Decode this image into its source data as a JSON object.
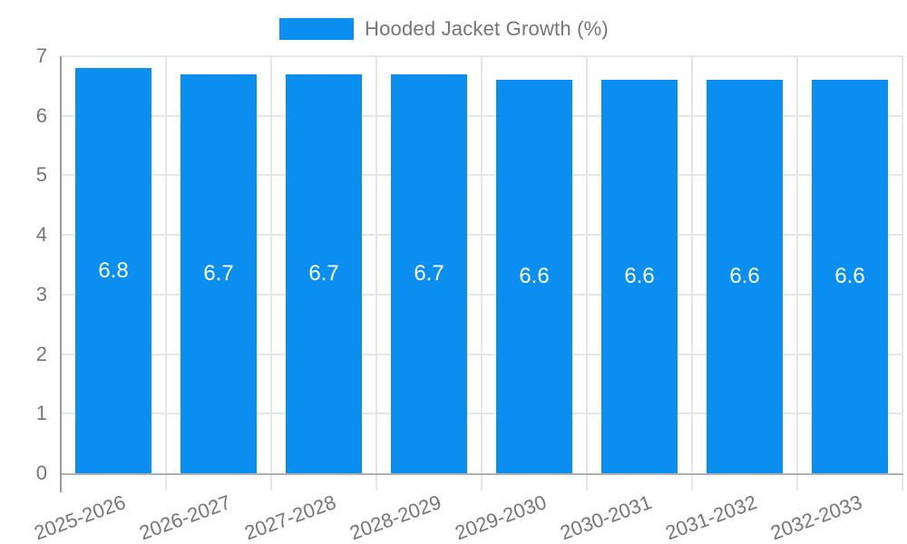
{
  "legend": {
    "label": "Hooded Jacket Growth (%)"
  },
  "chart_data": {
    "type": "bar",
    "title": "Hooded Jacket Growth (%)",
    "categories": [
      "2025-2026",
      "2026-2027",
      "2027-2028",
      "2028-2029",
      "2029-2030",
      "2030-2031",
      "2031-2032",
      "2032-2033"
    ],
    "values": [
      6.8,
      6.7,
      6.7,
      6.7,
      6.6,
      6.6,
      6.6,
      6.6
    ],
    "value_labels": [
      "6.8",
      "6.7",
      "6.7",
      "6.7",
      "6.6",
      "6.6",
      "6.6",
      "6.6"
    ],
    "xlabel": "",
    "ylabel": "",
    "ylim": [
      0,
      7
    ],
    "yticks": [
      0,
      1,
      2,
      3,
      4,
      5,
      6,
      7
    ],
    "grid": true,
    "legend_position": "top-center",
    "colors": {
      "bar": "#0a8ff1",
      "bar_value_text": "#ffffff",
      "grid": "#e6e6e6",
      "x_axis_line": "#b0b0b0",
      "y_axis_line": "#9a9a9a",
      "tick_label": "#757575",
      "legend_text": "#757575",
      "background": "#ffffff"
    }
  }
}
